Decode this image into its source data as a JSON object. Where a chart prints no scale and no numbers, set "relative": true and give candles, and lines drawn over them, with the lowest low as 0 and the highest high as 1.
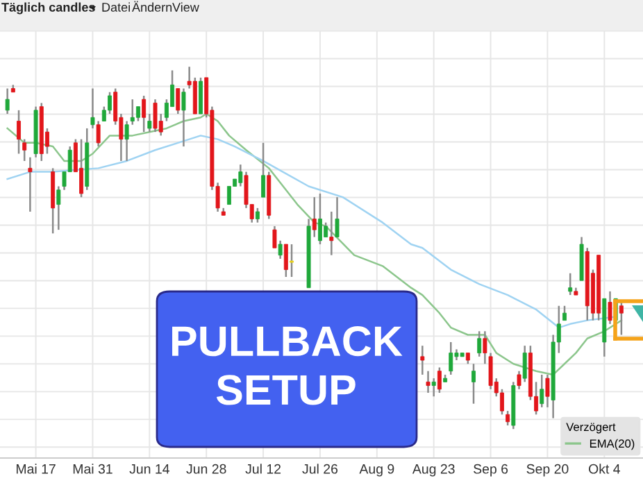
{
  "chart_data": {
    "type": "candlestick",
    "relative": true,
    "grid": true,
    "legend": "bottom right",
    "legend_title": "Verzögert",
    "categories": [
      null,
      null,
      null,
      null,
      null,
      "Mai 17",
      null,
      null,
      null,
      null,
      null,
      null,
      null,
      null,
      null,
      "Mai 31",
      null,
      null,
      null,
      null,
      null,
      null,
      null,
      null,
      null,
      "Jun 14",
      null,
      null,
      null,
      null,
      null,
      null,
      null,
      null,
      null,
      "Jun 28",
      null,
      null,
      null,
      null,
      null,
      null,
      null,
      null,
      null,
      "Jul 12",
      null,
      null,
      null,
      null,
      null,
      null,
      null,
      null,
      null,
      "Jul 26",
      null,
      null,
      null,
      null,
      null,
      null,
      null,
      null,
      null,
      "Aug 9",
      null,
      null,
      null,
      null,
      null,
      null,
      null,
      null,
      null,
      "Aug 23",
      null,
      null,
      null,
      null,
      null,
      null,
      null,
      null,
      null,
      "Sep 6",
      null,
      null,
      null,
      null,
      null,
      null,
      null,
      null,
      null,
      "Sep 20",
      null,
      null,
      null,
      null,
      null,
      null,
      null,
      null,
      null,
      "Okt 4",
      null,
      null,
      null
    ],
    "ohlc": [
      [
        0.88,
        0.94,
        0.87,
        0.91
      ],
      [
        0.94,
        0.95,
        0.93,
        0.93
      ],
      [
        0.85,
        0.88,
        0.76,
        0.8
      ],
      [
        0.79,
        0.8,
        0.74,
        0.77
      ],
      [
        0.72,
        0.75,
        0.6,
        0.71
      ],
      [
        0.76,
        0.89,
        0.75,
        0.88
      ],
      [
        0.89,
        0.9,
        0.74,
        0.76
      ],
      [
        0.82,
        0.83,
        0.76,
        0.78
      ],
      [
        0.71,
        0.72,
        0.54,
        0.61
      ],
      [
        0.62,
        0.67,
        0.55,
        0.66
      ],
      [
        0.67,
        0.71,
        0.66,
        0.71
      ],
      [
        0.71,
        0.78,
        0.71,
        0.77
      ],
      [
        0.79,
        0.8,
        0.71,
        0.71
      ],
      [
        0.72,
        0.8,
        0.64,
        0.65
      ],
      [
        0.67,
        0.83,
        0.66,
        0.79
      ],
      [
        0.84,
        0.94,
        0.83,
        0.86
      ],
      [
        0.84,
        0.85,
        0.78,
        0.79
      ],
      [
        0.85,
        0.89,
        0.85,
        0.88
      ],
      [
        0.88,
        0.93,
        0.87,
        0.92
      ],
      [
        0.93,
        0.94,
        0.84,
        0.85
      ],
      [
        0.86,
        0.87,
        0.74,
        0.8
      ],
      [
        0.8,
        0.85,
        0.74,
        0.84
      ],
      [
        0.85,
        0.91,
        0.84,
        0.86
      ],
      [
        0.86,
        0.89,
        0.85,
        0.89
      ],
      [
        0.91,
        0.92,
        0.82,
        0.86
      ],
      [
        0.83,
        0.87,
        0.82,
        0.85
      ],
      [
        0.9,
        0.91,
        0.82,
        0.83
      ],
      [
        0.85,
        0.87,
        0.81,
        0.82
      ],
      [
        0.86,
        0.91,
        0.85,
        0.9
      ],
      [
        0.89,
        0.99,
        0.89,
        0.95
      ],
      [
        0.94,
        0.94,
        0.87,
        0.88
      ],
      [
        0.88,
        0.94,
        0.78,
        0.93
      ],
      [
        0.96,
        1.0,
        0.94,
        0.95
      ],
      [
        0.96,
        0.97,
        0.87,
        0.87
      ],
      [
        0.87,
        0.97,
        0.87,
        0.96
      ],
      [
        0.97,
        0.97,
        0.86,
        0.87
      ],
      [
        0.88,
        0.89,
        0.66,
        0.67
      ],
      [
        0.67,
        0.68,
        0.6,
        0.61
      ],
      [
        0.6,
        0.61,
        0.59,
        0.59
      ],
      [
        0.62,
        0.67,
        0.62,
        0.67
      ],
      [
        0.67,
        0.69,
        0.67,
        0.69
      ],
      [
        0.68,
        0.73,
        0.67,
        0.71
      ],
      [
        0.7,
        0.71,
        0.61,
        0.62
      ],
      [
        0.62,
        0.62,
        0.57,
        0.58
      ],
      [
        0.58,
        0.61,
        0.57,
        0.6
      ],
      [
        0.64,
        0.79,
        0.64,
        0.7
      ],
      [
        0.7,
        0.71,
        0.58,
        0.59
      ],
      [
        0.55,
        0.56,
        0.5,
        0.5
      ],
      [
        0.48,
        0.52,
        0.47,
        0.51
      ],
      [
        0.51,
        0.51,
        0.42,
        0.44
      ],
      [
        0.46,
        0.51,
        0.42,
        0.46
      ],
      null,
      null,
      [
        0.39,
        0.58,
        0.39,
        0.56
      ],
      [
        0.58,
        0.64,
        0.53,
        0.55
      ],
      [
        0.52,
        0.65,
        0.51,
        0.58
      ],
      [
        0.53,
        0.57,
        0.53,
        0.56
      ],
      [
        0.53,
        0.6,
        0.48,
        0.52
      ],
      [
        0.53,
        0.64,
        0.53,
        0.58
      ],
      null,
      null,
      null,
      null,
      null,
      null,
      null,
      null,
      null,
      null,
      null,
      null,
      null,
      null,
      [
        0.2,
        0.23,
        0.15,
        0.19
      ],
      [
        0.13,
        0.16,
        0.1,
        0.12
      ],
      [
        0.12,
        0.14,
        0.09,
        0.13
      ],
      [
        0.16,
        0.17,
        0.1,
        0.11
      ],
      [
        0.13,
        0.15,
        0.13,
        0.14
      ],
      [
        0.16,
        0.24,
        0.15,
        0.21
      ],
      [
        0.2,
        0.22,
        0.19,
        0.21
      ],
      [
        0.2,
        0.21,
        0.2,
        0.21
      ],
      [
        0.21,
        0.21,
        0.18,
        0.19
      ],
      [
        0.13,
        0.18,
        0.07,
        0.16
      ],
      [
        0.21,
        0.27,
        0.2,
        0.25
      ],
      [
        0.25,
        0.27,
        0.18,
        0.21
      ],
      [
        0.2,
        0.21,
        0.11,
        0.12
      ],
      [
        0.13,
        0.14,
        0.09,
        0.1
      ],
      [
        0.1,
        0.11,
        0.04,
        0.05
      ],
      [
        0.04,
        0.05,
        0.01,
        0.02
      ],
      [
        0.01,
        0.13,
        0.0,
        0.12
      ],
      [
        0.15,
        0.16,
        0.11,
        0.12
      ],
      [
        0.14,
        0.23,
        0.13,
        0.21
      ],
      [
        0.21,
        0.23,
        0.08,
        0.09
      ],
      [
        0.09,
        0.13,
        0.04,
        0.05
      ],
      [
        0.07,
        0.15,
        0.06,
        0.11
      ],
      [
        0.14,
        0.15,
        0.06,
        0.09
      ],
      [
        0.08,
        0.26,
        0.03,
        0.24
      ],
      [
        0.24,
        0.34,
        0.21,
        0.29
      ],
      [
        0.3,
        0.34,
        0.3,
        0.32
      ],
      [
        0.38,
        0.43,
        0.37,
        0.39
      ],
      [
        0.38,
        0.39,
        0.37,
        0.37
      ],
      [
        0.41,
        0.53,
        0.41,
        0.51
      ],
      [
        0.49,
        0.5,
        0.3,
        0.34
      ],
      [
        0.43,
        0.44,
        0.3,
        0.32
      ],
      [
        0.48,
        0.48,
        0.3,
        0.32
      ],
      [
        0.24,
        0.36,
        0.2,
        0.36
      ],
      [
        0.35,
        0.38,
        0.29,
        0.3
      ],
      [
        0.3,
        0.36,
        0.3,
        0.36
      ],
      [
        0.34,
        0.35,
        0.26,
        0.32
      ]
    ],
    "colors": [
      "#1fa83a",
      "#e2161b",
      "#e2161b",
      "#e2161b",
      "#e2161b",
      "#1fa83a",
      "#e2161b",
      "#e2161b",
      "#e2161b",
      "#1fa83a",
      "#1fa83a",
      "#1fa83a",
      "#e2161b",
      "#e2161b",
      "#1fa83a",
      "#1fa83a",
      "#e2161b",
      "#1fa83a",
      "#1fa83a",
      "#e2161b",
      "#e2161b",
      "#1fa83a",
      "#1fa83a",
      "#1fa83a",
      "#e2161b",
      "#1fa83a",
      "#e2161b",
      "#e2161b",
      "#1fa83a",
      "#1fa83a",
      "#e2161b",
      "#1fa83a",
      "#e2161b",
      "#e2161b",
      "#1fa83a",
      "#e2161b",
      "#e2161b",
      "#e2161b",
      "#e2161b",
      "#1fa83a",
      "#1fa83a",
      "#1fa83a",
      "#e2161b",
      "#e2161b",
      "#1fa83a",
      "#1fa83a",
      "#e2161b",
      "#e2161b",
      "#1fa83a",
      "#e2161b",
      "#e8d21c",
      null,
      null,
      "#1fa83a",
      "#e2161b",
      "#1fa83a",
      "#1fa83a",
      "#e2161b",
      "#1fa83a",
      null,
      null,
      null,
      null,
      null,
      null,
      null,
      null,
      null,
      null,
      null,
      null,
      null,
      null,
      "#e2161b",
      "#e2161b",
      "#1fa83a",
      "#e2161b",
      "#1fa83a",
      "#1fa83a",
      "#1fa83a",
      "#1fa83a",
      "#e2161b",
      "#1fa83a",
      "#1fa83a",
      "#e2161b",
      "#e2161b",
      "#e2161b",
      "#e2161b",
      "#e2161b",
      "#1fa83a",
      "#e2161b",
      "#1fa83a",
      "#e2161b",
      "#e2161b",
      "#1fa83a",
      "#e2161b",
      "#1fa83a",
      "#1fa83a",
      "#1fa83a",
      "#1fa83a",
      "#e2161b",
      "#1fa83a",
      "#e2161b",
      "#e2161b",
      "#e2161b",
      "#1fa83a",
      "#e2161b",
      "#1fa83a",
      "#e2161b"
    ],
    "series": [
      {
        "type": "line",
        "name": "EMA(20)",
        "color": "#8cc68c",
        "values": [
          0.83,
          null,
          null,
          0.79,
          null,
          0.79,
          null,
          null,
          0.78,
          null,
          0.74,
          null,
          null,
          0.74,
          null,
          0.76,
          null,
          null,
          0.81,
          null,
          null,
          null,
          0.81,
          null,
          null,
          0.82,
          null,
          null,
          0.83,
          null,
          null,
          0.85,
          null,
          null,
          0.86,
          0.87,
          null,
          0.85,
          null,
          0.81,
          null,
          null,
          0.77,
          null,
          null,
          null,
          0.72,
          null,
          null,
          null,
          null,
          0.62,
          null,
          null,
          0.57,
          null,
          0.56,
          null,
          null,
          null,
          null,
          0.48,
          null,
          null,
          null,
          null,
          0.45,
          null,
          null,
          null,
          null,
          0.39,
          null,
          0.37,
          null,
          null,
          0.32,
          null,
          0.28,
          null,
          null,
          0.26,
          null,
          null,
          0.26,
          null,
          0.21,
          null,
          null,
          0.18,
          null,
          null,
          null,
          0.16,
          null,
          null,
          0.15,
          null,
          0.18,
          null,
          0.21,
          null,
          0.25,
          null,
          null,
          0.27,
          null,
          0.29,
          0.3
        ]
      },
      {
        "type": "line",
        "color": "#9fd3f2",
        "values": [
          0.69,
          null,
          null,
          null,
          0.71,
          null,
          null,
          null,
          0.71,
          null,
          null,
          null,
          null,
          null,
          null,
          null,
          0.72,
          null,
          null,
          null,
          null,
          0.74,
          null,
          null,
          null,
          null,
          0.77,
          null,
          null,
          null,
          0.79,
          null,
          null,
          null,
          0.81,
          null,
          null,
          0.8,
          null,
          null,
          0.78,
          null,
          null,
          null,
          null,
          0.74,
          null,
          null,
          null,
          null,
          null,
          null,
          null,
          0.67,
          null,
          null,
          null,
          null,
          null,
          0.64,
          null,
          null,
          null,
          null,
          null,
          null,
          0.57,
          null,
          null,
          null,
          null,
          0.51,
          null,
          0.5,
          null,
          null,
          null,
          null,
          0.44,
          null,
          null,
          null,
          null,
          0.4,
          null,
          null,
          null,
          null,
          0.37,
          null,
          null,
          null,
          null,
          0.33,
          null,
          null,
          null,
          0.28,
          null,
          0.29,
          null,
          null,
          0.3,
          null,
          null,
          null,
          null,
          0.31,
          null
        ]
      }
    ],
    "annotations": [
      "Täglich candles",
      "Datei",
      "Ändern",
      "View",
      "PULLBACK\nSETUP"
    ]
  }
}
